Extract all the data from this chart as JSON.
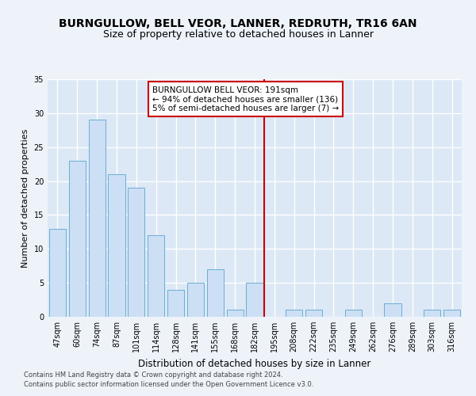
{
  "title": "BURNGULLOW, BELL VEOR, LANNER, REDRUTH, TR16 6AN",
  "subtitle": "Size of property relative to detached houses in Lanner",
  "xlabel": "Distribution of detached houses by size in Lanner",
  "ylabel": "Number of detached properties",
  "categories": [
    "47sqm",
    "60sqm",
    "74sqm",
    "87sqm",
    "101sqm",
    "114sqm",
    "128sqm",
    "141sqm",
    "155sqm",
    "168sqm",
    "182sqm",
    "195sqm",
    "208sqm",
    "222sqm",
    "235sqm",
    "249sqm",
    "262sqm",
    "276sqm",
    "289sqm",
    "303sqm",
    "316sqm"
  ],
  "values": [
    13,
    23,
    29,
    21,
    19,
    12,
    4,
    5,
    7,
    1,
    5,
    0,
    1,
    1,
    0,
    1,
    0,
    2,
    0,
    1,
    1
  ],
  "bar_color": "#ccdff5",
  "bar_edge_color": "#6aaed6",
  "vline_x": 10.5,
  "marker_label": "BURNGULLOW BELL VEOR: 191sqm",
  "annotation_line1": "← 94% of detached houses are smaller (136)",
  "annotation_line2": "5% of semi-detached houses are larger (7) →",
  "annotation_box_color": "#ffffff",
  "annotation_box_edge": "#cc0000",
  "vline_color": "#cc0000",
  "background_color": "#dce8f5",
  "plot_bg_color": "#dce8f5",
  "grid_color": "#ffffff",
  "fig_bg_color": "#eef3fa",
  "ylim": [
    0,
    35
  ],
  "yticks": [
    0,
    5,
    10,
    15,
    20,
    25,
    30,
    35
  ],
  "footer1": "Contains HM Land Registry data © Crown copyright and database right 2024.",
  "footer2": "Contains public sector information licensed under the Open Government Licence v3.0.",
  "title_fontsize": 10,
  "subtitle_fontsize": 9,
  "footer_fontsize": 6,
  "ylabel_fontsize": 8,
  "xlabel_fontsize": 8.5,
  "tick_fontsize": 7,
  "annot_fontsize": 7.5
}
